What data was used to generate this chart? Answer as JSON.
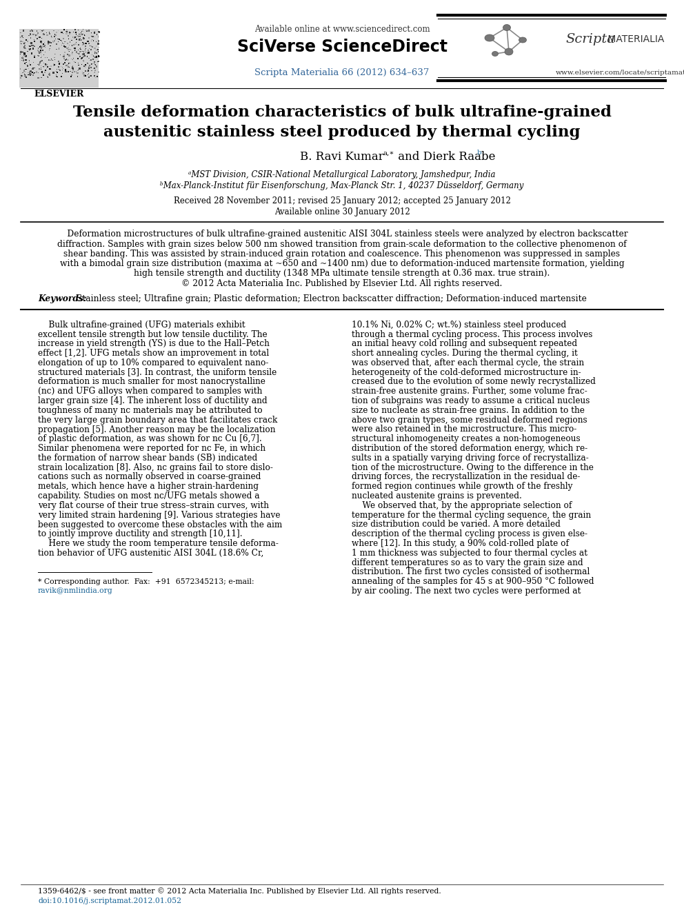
{
  "title_line1": "Tensile deformation characteristics of bulk ultrafine-grained",
  "title_line2": "austenitic stainless steel produced by thermal cycling",
  "available_online": "Available online at www.sciencedirect.com",
  "sciverse": "SciVerse ScienceDirect",
  "journal_link": "Scripta Materialia 66 (2012) 634–637",
  "elsevier_url": "www.elsevier.com/locate/scriptamat",
  "affil_a": "ᵃMST Division, CSIR-National Metallurgical Laboratory, Jamshedpur, India",
  "affil_b": "ᵇMax-Planck-Institut für Eisenforschung, Max-Planck Str. 1, 40237 Düsseldorf, Germany",
  "received": "Received 28 November 2011; revised 25 January 2012; accepted 25 January 2012",
  "available": "Available online 30 January 2012",
  "abstract_text": "    Deformation microstructures of bulk ultrafine-grained austenitic AISI 304L stainless steels were analyzed by electron backscatter\ndiffraction. Samples with grain sizes below 500 nm showed transition from grain-scale deformation to the collective phenomenon of\nshear banding. This was assisted by strain-induced grain rotation and coalescence. This phenomenon was suppressed in samples\nwith a bimodal grain size distribution (maxima at ~650 and ~1400 nm) due to deformation-induced martensite formation, yielding\nhigh tensile strength and ductility (1348 MPa ultimate tensile strength at 0.36 max. true strain).\n© 2012 Acta Materialia Inc. Published by Elsevier Ltd. All rights reserved.",
  "keywords_label": "Keywords:",
  "keywords_text": " Stainless steel; Ultrafine grain; Plastic deformation; Electron backscatter diffraction; Deformation-induced martensite",
  "col1_lines": [
    "    Bulk ultrafine-grained (UFG) materials exhibit",
    "excellent tensile strength but low tensile ductility. The",
    "increase in yield strength (YS) is due to the Hall–Petch",
    "effect [1,2]. UFG metals show an improvement in total",
    "elongation of up to 10% compared to equivalent nano-",
    "structured materials [3]. In contrast, the uniform tensile",
    "deformation is much smaller for most nanocrystalline",
    "(nc) and UFG alloys when compared to samples with",
    "larger grain size [4]. The inherent loss of ductility and",
    "toughness of many nc materials may be attributed to",
    "the very large grain boundary area that facilitates crack",
    "propagation [5]. Another reason may be the localization",
    "of plastic deformation, as was shown for nc Cu [6,7].",
    "Similar phenomena were reported for nc Fe, in which",
    "the formation of narrow shear bands (SB) indicated",
    "strain localization [8]. Also, nc grains fail to store dislo-",
    "cations such as normally observed in coarse-grained",
    "metals, which hence have a higher strain-hardening",
    "capability. Studies on most nc/UFG metals showed a",
    "very flat course of their true stress–strain curves, with",
    "very limited strain hardening [9]. Various strategies have",
    "been suggested to overcome these obstacles with the aim",
    "to jointly improve ductility and strength [10,11].",
    "    Here we study the room temperature tensile deforma-",
    "tion behavior of UFG austenitic AISI 304L (18.6% Cr,"
  ],
  "col2_lines": [
    "10.1% Ni, 0.02% C; wt.%) stainless steel produced",
    "through a thermal cycling process. This process involves",
    "an initial heavy cold rolling and subsequent repeated",
    "short annealing cycles. During the thermal cycling, it",
    "was observed that, after each thermal cycle, the strain",
    "heterogeneity of the cold-deformed microstructure in-",
    "creased due to the evolution of some newly recrystallized",
    "strain-free austenite grains. Further, some volume frac-",
    "tion of subgrains was ready to assume a critical nucleus",
    "size to nucleate as strain-free grains. In addition to the",
    "above two grain types, some residual deformed regions",
    "were also retained in the microstructure. This micro-",
    "structural inhomogeneity creates a non-homogeneous",
    "distribution of the stored deformation energy, which re-",
    "sults in a spatially varying driving force of recrystalliza-",
    "tion of the microstructure. Owing to the difference in the",
    "driving forces, the recrystallization in the residual de-",
    "formed region continues while growth of the freshly",
    "nucleated austenite grains is prevented.",
    "    We observed that, by the appropriate selection of",
    "temperature for the thermal cycling sequence, the grain",
    "size distribution could be varied. A more detailed",
    "description of the thermal cycling process is given else-",
    "where [12]. In this study, a 90% cold-rolled plate of",
    "1 mm thickness was subjected to four thermal cycles at",
    "different temperatures so as to vary the grain size and",
    "distribution. The first two cycles consisted of isothermal",
    "annealing of the samples for 45 s at 900–950 °C followed",
    "by air cooling. The next two cycles were performed at"
  ],
  "footnote1": "* Corresponding author.  Fax:  +91  6572345213; e-mail:",
  "footnote2": "ravik@nmlindia.org",
  "bottom1": "1359-6462/$ - see front matter © 2012 Acta Materialia Inc. Published by Elsevier Ltd. All rights reserved.",
  "bottom2": "doi:10.1016/j.scriptamat.2012.01.052",
  "bg_color": "#ffffff",
  "text_color": "#000000",
  "link_color": "#1a6496",
  "journal_color": "#336699",
  "doi_color": "#1a6496"
}
